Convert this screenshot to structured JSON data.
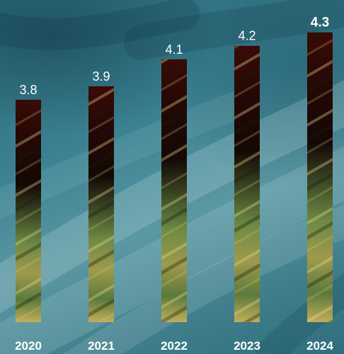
{
  "chart_data": {
    "type": "bar",
    "title": "",
    "xlabel": "",
    "ylabel": "",
    "categories": [
      "2020",
      "2021",
      "2022",
      "2023",
      "2024"
    ],
    "values": [
      3.8,
      3.9,
      4.1,
      4.2,
      4.3
    ],
    "highlight_index": 4,
    "ylim": [
      2.15,
      4.33
    ],
    "grid": false,
    "legend": "none",
    "colors": {
      "background": "#3a8090",
      "bar_top": "#3b0a06",
      "bar_mid": "#1a0a04",
      "bar_green": "#5f7a3a",
      "bar_gold": "#b9a654",
      "text": "#ffffff"
    }
  }
}
